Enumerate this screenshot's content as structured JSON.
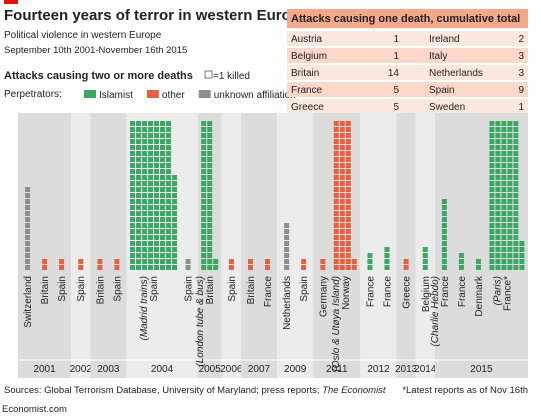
{
  "title": "Fourteen years of terror in western Europe",
  "subtitle": "Political violence in western Europe",
  "date_range": "September 10th 2001-November 16th 2015",
  "table": {
    "title": "Attacks causing one death, cumulative total",
    "rows": [
      [
        "Austria",
        1,
        "Ireland",
        2
      ],
      [
        "Belgium",
        1,
        "Italy",
        3
      ],
      [
        "Britain",
        14,
        "Netherlands",
        3
      ],
      [
        "France",
        5,
        "Spain",
        9
      ],
      [
        "Greece",
        5,
        "Sweden",
        1
      ]
    ]
  },
  "chart_data": {
    "type": "waffle",
    "title": "Attacks causing two or more deaths",
    "unit_label": "=1 killed",
    "legend_title": "Perpetrators:",
    "series": [
      {
        "name": "Islamist",
        "color": "#3aa864"
      },
      {
        "name": "other",
        "color": "#e8613f"
      },
      {
        "name": "unknown affiliation",
        "color": "#8e8e8e"
      }
    ],
    "years": [
      "2001",
      "2002",
      "2003",
      "2004",
      "2005",
      "2006",
      "2007",
      "2009",
      "2011",
      "2012",
      "2013",
      "2014",
      "2015"
    ],
    "attacks": [
      {
        "year": "2001",
        "label": "Switzerland",
        "perpetrator": "unknown affiliation",
        "killed": 14
      },
      {
        "year": "2001",
        "label": "Britain",
        "perpetrator": "other",
        "killed": 2
      },
      {
        "year": "2001",
        "label": "Spain",
        "perpetrator": "other",
        "killed": 2
      },
      {
        "year": "2002",
        "label": "Spain",
        "perpetrator": "other",
        "killed": 2
      },
      {
        "year": "2003",
        "label": "Britain",
        "perpetrator": "other",
        "killed": 2
      },
      {
        "year": "2003",
        "label": "Spain",
        "perpetrator": "other",
        "killed": 2
      },
      {
        "year": "2004",
        "label": "Spain",
        "perpetrator": "Islamist",
        "killed": 191,
        "note": "(Madrid trains)"
      },
      {
        "year": "2004",
        "label": "Spain",
        "perpetrator": "unknown affiliation",
        "killed": 2
      },
      {
        "year": "2005",
        "label": "Britain",
        "perpetrator": "Islamist",
        "killed": 52,
        "note": "(London tube & bus)"
      },
      {
        "year": "2006",
        "label": "Spain",
        "perpetrator": "other",
        "killed": 2
      },
      {
        "year": "2007",
        "label": "Britain",
        "perpetrator": "other",
        "killed": 2
      },
      {
        "year": "2007",
        "label": "France",
        "perpetrator": "other",
        "killed": 2
      },
      {
        "year": "2009",
        "label": "Netherlands",
        "perpetrator": "unknown affiliation",
        "killed": 8
      },
      {
        "year": "2009",
        "label": "Spain",
        "perpetrator": "other",
        "killed": 2
      },
      {
        "year": "2011",
        "label": "Germany",
        "perpetrator": "other",
        "killed": 2
      },
      {
        "year": "2011",
        "label": "Norway",
        "perpetrator": "other",
        "killed": 77,
        "note": "(Oslo & Utøya Island)"
      },
      {
        "year": "2012",
        "label": "France",
        "perpetrator": "Islamist",
        "killed": 3
      },
      {
        "year": "2012",
        "label": "France",
        "perpetrator": "Islamist",
        "killed": 4
      },
      {
        "year": "2013",
        "label": "Greece",
        "perpetrator": "other",
        "killed": 2
      },
      {
        "year": "2014",
        "label": "Belgium",
        "perpetrator": "Islamist",
        "killed": 4
      },
      {
        "year": "2015",
        "label": "France",
        "perpetrator": "Islamist",
        "killed": 12,
        "note": "(Charlie Hebdo)"
      },
      {
        "year": "2015",
        "label": "France",
        "perpetrator": "Islamist",
        "killed": 3
      },
      {
        "year": "2015",
        "label": "Denmark",
        "perpetrator": "Islamist",
        "killed": 2
      },
      {
        "year": "2015",
        "label": "France*",
        "perpetrator": "Islamist",
        "killed": 130,
        "note": "(Paris)"
      }
    ]
  },
  "sources": "Sources: Global Terrorism Database, University of Maryland; press reports; ",
  "sources_italic": "The Economist",
  "footnote": "*Latest reports as of Nov 16th",
  "brand": "Economist.com"
}
